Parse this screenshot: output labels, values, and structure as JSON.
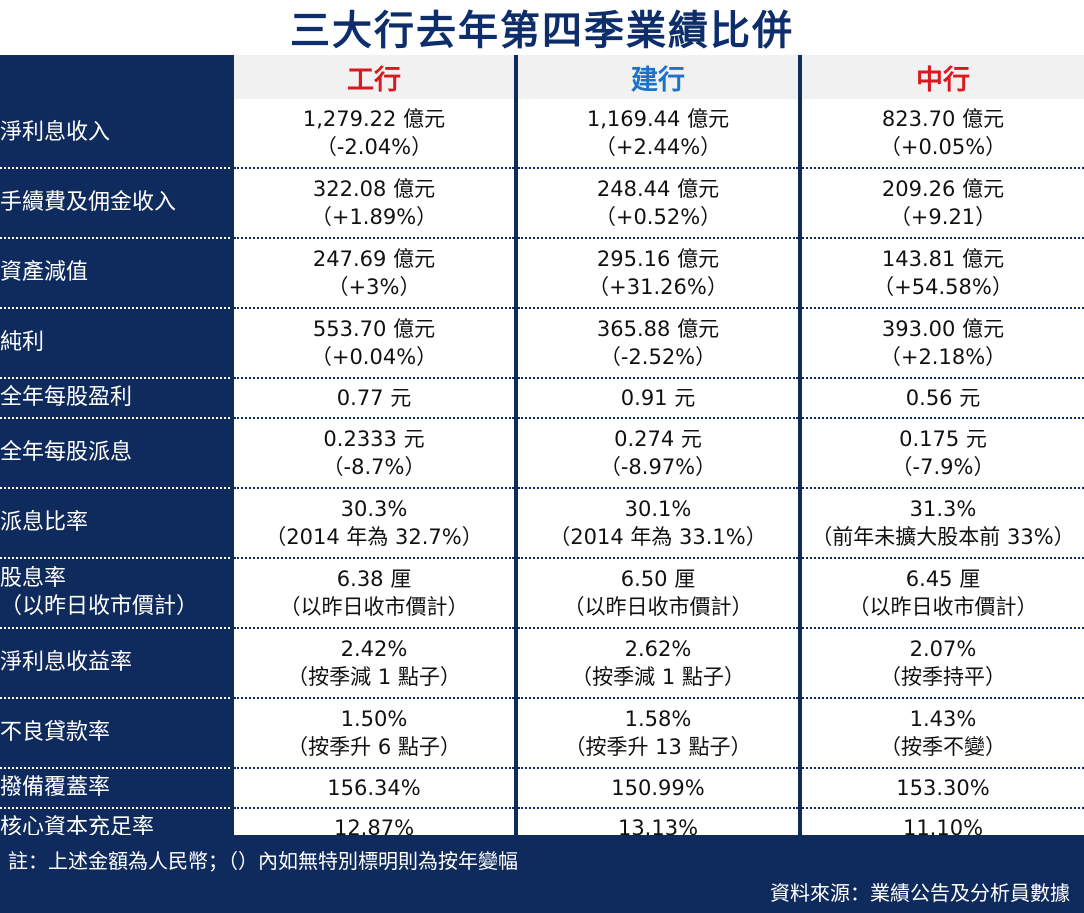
{
  "title": "三大行去年第四季業績比併",
  "banks": [
    "工行",
    "建行",
    "中行"
  ],
  "bank_colors": [
    "#d71920",
    "#1a73c9",
    "#d71920"
  ],
  "rows": [
    {
      "label": [
        "淨利息收入"
      ],
      "cells": [
        [
          "1,279.22 億元",
          "（-2.04%）"
        ],
        [
          "1,169.44 億元",
          "（+2.44%）"
        ],
        [
          "823.70 億元",
          "（+0.05%）"
        ]
      ]
    },
    {
      "label": [
        "手續費及佣金收入"
      ],
      "cells": [
        [
          "322.08 億元",
          "（+1.89%）"
        ],
        [
          "248.44 億元",
          "（+0.52%）"
        ],
        [
          "209.26 億元",
          "（+9.21）"
        ]
      ]
    },
    {
      "label": [
        "資產減值"
      ],
      "cells": [
        [
          "247.69 億元",
          "（+3%）"
        ],
        [
          "295.16 億元",
          "（+31.26%）"
        ],
        [
          "143.81 億元",
          "（+54.58%）"
        ]
      ]
    },
    {
      "label": [
        "純利"
      ],
      "cells": [
        [
          "553.70 億元",
          "（+0.04%）"
        ],
        [
          "365.88 億元",
          "（-2.52%）"
        ],
        [
          "393.00 億元",
          "（+2.18%）"
        ]
      ]
    },
    {
      "label": [
        "全年每股盈利"
      ],
      "cells": [
        [
          "0.77 元"
        ],
        [
          "0.91 元"
        ],
        [
          "0.56 元"
        ]
      ]
    },
    {
      "label": [
        "全年每股派息"
      ],
      "cells": [
        [
          "0.2333 元",
          "（-8.7%）"
        ],
        [
          "0.274 元",
          "（-8.97%）"
        ],
        [
          "0.175 元",
          "（-7.9%）"
        ]
      ]
    },
    {
      "label": [
        "派息比率"
      ],
      "cells": [
        [
          "30.3%",
          "（2014 年為 32.7%）"
        ],
        [
          "30.1%",
          "（2014 年為 33.1%）"
        ],
        [
          "31.3%",
          "（前年未擴大股本前 33%）"
        ]
      ]
    },
    {
      "label": [
        "股息率",
        "（以昨日收市價計）"
      ],
      "cells": [
        [
          "6.38 厘",
          "（以昨日收市價計）"
        ],
        [
          "6.50 厘",
          "（以昨日收市價計）"
        ],
        [
          "6.45 厘",
          "（以昨日收市價計）"
        ]
      ]
    },
    {
      "label": [
        "淨利息收益率"
      ],
      "cells": [
        [
          "2.42%",
          "（按季減 1 點子）"
        ],
        [
          "2.62%",
          "（按季減 1 點子）"
        ],
        [
          "2.07%",
          "（按季持平）"
        ]
      ]
    },
    {
      "label": [
        "不良貸款率"
      ],
      "cells": [
        [
          "1.50%",
          "（按季升 6 點子）"
        ],
        [
          "1.58%",
          "（按季升 13 點子）"
        ],
        [
          "1.43%",
          "（按季不變）"
        ]
      ]
    },
    {
      "label": [
        "撥備覆蓋率"
      ],
      "cells": [
        [
          "156.34%"
        ],
        [
          "150.99%"
        ],
        [
          "153.30%"
        ]
      ]
    },
    {
      "label": [
        "核心資本充足率"
      ],
      "cells": [
        [
          "12.87%"
        ],
        [
          "13.13%"
        ],
        [
          "11.10%"
        ]
      ]
    }
  ],
  "note": "註：上述金額為人民幣；（）內如無特別標明則為按年變幅",
  "source": "資料來源：業績公告及分析員數據"
}
